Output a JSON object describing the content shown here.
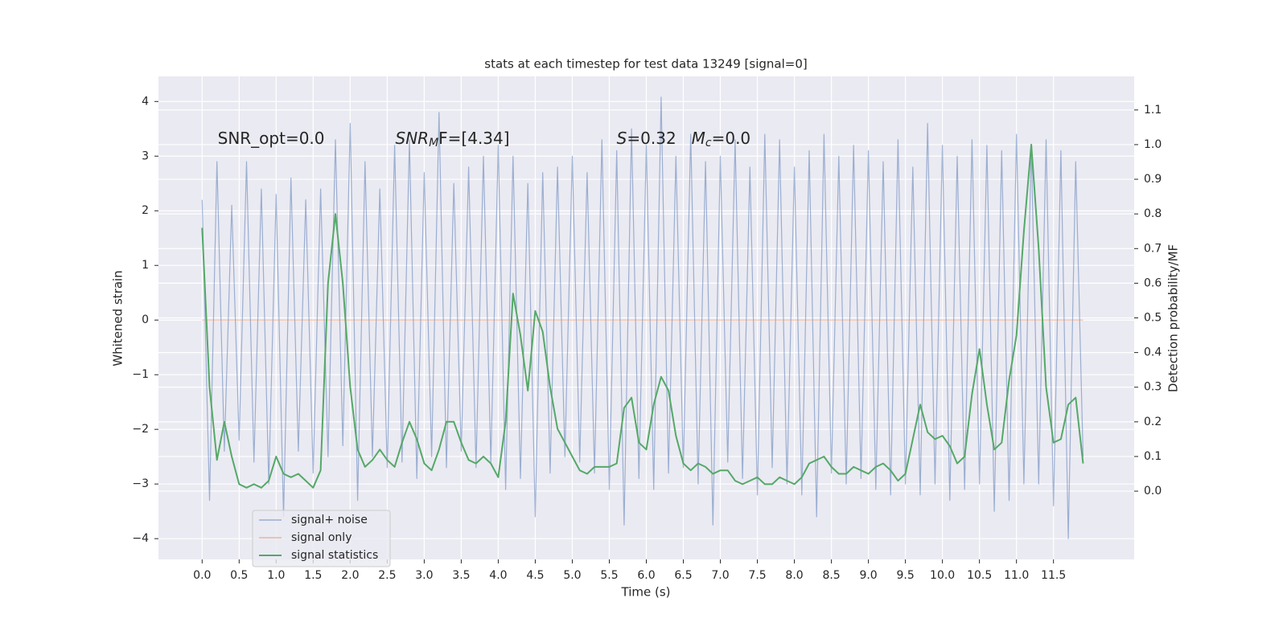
{
  "chart_data": {
    "type": "line",
    "title": "stats at each timestep for test data 13249 [signal=0]",
    "xlabel": "Time (s)",
    "ylabel": "Whitened strain",
    "y2label": "Detection probability/MF",
    "annotations": [
      {
        "x": 0.21,
        "y": 3.31,
        "parts": [
          {
            "text": "SNR_opt=0.0"
          }
        ]
      },
      {
        "x": 2.61,
        "y": 3.31,
        "parts": [
          {
            "text": "SNR",
            "italic": true
          },
          {
            "text": "M",
            "italic": true,
            "sub": true
          },
          {
            "text": "F=[4.34]"
          }
        ]
      },
      {
        "x": 5.6,
        "y": 3.31,
        "parts": [
          {
            "text": "S",
            "italic": true
          },
          {
            "text": "=0.32"
          }
        ]
      },
      {
        "x": 6.61,
        "y": 3.31,
        "parts": [
          {
            "text": "M",
            "italic": true
          },
          {
            "text": "c",
            "italic": true,
            "sub": true
          },
          {
            "text": "=0.0"
          }
        ]
      }
    ],
    "x": [
      0.0,
      0.1,
      0.2,
      0.3,
      0.4,
      0.5,
      0.6,
      0.7,
      0.8,
      0.9,
      1.0,
      1.1,
      1.2,
      1.3,
      1.4,
      1.5,
      1.6,
      1.7,
      1.8,
      1.9,
      2.0,
      2.1,
      2.2,
      2.3,
      2.4,
      2.5,
      2.6,
      2.7,
      2.8,
      2.9,
      3.0,
      3.1,
      3.2,
      3.3,
      3.4,
      3.5,
      3.6,
      3.7,
      3.8,
      3.9,
      4.0,
      4.1,
      4.2,
      4.3,
      4.4,
      4.5,
      4.6,
      4.7,
      4.8,
      4.9,
      5.0,
      5.1,
      5.2,
      5.3,
      5.4,
      5.5,
      5.6,
      5.7,
      5.8,
      5.9,
      6.0,
      6.1,
      6.2,
      6.3,
      6.4,
      6.5,
      6.6,
      6.7,
      6.8,
      6.9,
      7.0,
      7.1,
      7.2,
      7.3,
      7.4,
      7.5,
      7.6,
      7.7,
      7.8,
      7.9,
      8.0,
      8.1,
      8.2,
      8.3,
      8.4,
      8.5,
      8.6,
      8.7,
      8.8,
      8.9,
      9.0,
      9.1,
      9.2,
      9.3,
      9.4,
      9.5,
      9.6,
      9.7,
      9.8,
      9.9,
      10.0,
      10.1,
      10.2,
      10.3,
      10.4,
      10.5,
      10.6,
      10.7,
      10.8,
      10.9,
      11.0,
      11.1,
      11.2,
      11.3,
      11.4,
      11.5,
      11.6,
      11.7,
      11.8,
      11.9
    ],
    "series": [
      {
        "name": "signal+ noise",
        "color": "#4c72b0",
        "opacity": 0.5,
        "values": [
          2.2,
          -3.3,
          2.9,
          -2.4,
          2.1,
          -2.2,
          2.9,
          -2.6,
          2.4,
          -3.0,
          2.3,
          -3.6,
          2.6,
          -2.4,
          2.2,
          -2.8,
          2.4,
          -2.5,
          3.3,
          -2.3,
          3.6,
          -3.3,
          2.9,
          -2.5,
          2.4,
          -2.7,
          3.2,
          -2.6,
          3.3,
          -2.9,
          2.7,
          -2.5,
          3.8,
          -2.7,
          2.5,
          -2.4,
          2.8,
          -2.7,
          3.0,
          -2.6,
          3.2,
          -3.1,
          3.0,
          -2.9,
          2.5,
          -3.6,
          2.7,
          -2.8,
          2.8,
          -2.5,
          3.0,
          -2.6,
          2.7,
          -2.8,
          3.3,
          -3.1,
          3.1,
          -3.75,
          3.5,
          -2.9,
          3.2,
          -3.1,
          4.08,
          -2.8,
          3.0,
          -2.7,
          3.4,
          -3.0,
          2.9,
          -3.75,
          3.0,
          -2.6,
          3.3,
          -2.9,
          2.8,
          -3.2,
          3.4,
          -2.7,
          3.3,
          -3.0,
          2.8,
          -3.2,
          3.1,
          -3.6,
          3.4,
          -2.8,
          3.0,
          -3.0,
          3.2,
          -2.9,
          3.1,
          -3.1,
          2.9,
          -3.2,
          3.3,
          -3.0,
          2.8,
          -3.2,
          3.6,
          -3.0,
          3.2,
          -3.3,
          3.0,
          -3.1,
          3.3,
          -3.0,
          3.2,
          -3.5,
          3.1,
          -3.3,
          3.4,
          -3.0,
          3.2,
          -3.0,
          3.3,
          -3.4,
          3.1,
          -4.0,
          2.9,
          -2.5
        ]
      },
      {
        "name": "signal only",
        "color": "#dd8452",
        "opacity": 0.5,
        "x": [
          0.0,
          11.9
        ],
        "values": [
          0,
          0
        ]
      },
      {
        "name": "signal statistics",
        "color": "#55a868",
        "opacity": 1,
        "axis": "y2",
        "values": [
          0.76,
          0.3,
          0.09,
          0.2,
          0.1,
          0.02,
          0.01,
          0.02,
          0.01,
          0.03,
          0.1,
          0.05,
          0.04,
          0.05,
          0.03,
          0.01,
          0.06,
          0.6,
          0.8,
          0.6,
          0.3,
          0.12,
          0.07,
          0.09,
          0.12,
          0.09,
          0.07,
          0.14,
          0.2,
          0.15,
          0.08,
          0.06,
          0.12,
          0.2,
          0.2,
          0.14,
          0.09,
          0.08,
          0.1,
          0.08,
          0.04,
          0.2,
          0.57,
          0.45,
          0.29,
          0.52,
          0.46,
          0.3,
          0.18,
          0.14,
          0.1,
          0.06,
          0.05,
          0.07,
          0.07,
          0.07,
          0.08,
          0.24,
          0.27,
          0.14,
          0.12,
          0.25,
          0.33,
          0.29,
          0.16,
          0.08,
          0.06,
          0.08,
          0.07,
          0.05,
          0.06,
          0.06,
          0.03,
          0.02,
          0.03,
          0.04,
          0.02,
          0.02,
          0.04,
          0.03,
          0.02,
          0.04,
          0.08,
          0.09,
          0.1,
          0.07,
          0.05,
          0.05,
          0.07,
          0.06,
          0.05,
          0.07,
          0.08,
          0.06,
          0.03,
          0.05,
          0.15,
          0.25,
          0.17,
          0.15,
          0.16,
          0.13,
          0.08,
          0.1,
          0.28,
          0.41,
          0.25,
          0.12,
          0.14,
          0.32,
          0.45,
          0.75,
          1.0,
          0.7,
          0.3,
          0.14,
          0.15,
          0.25,
          0.27,
          0.08
        ]
      }
    ],
    "xlim": [
      -0.59,
      12.59
    ],
    "xticks": [
      {
        "value": 0,
        "label": "0.0"
      },
      0.5,
      {
        "value": 1,
        "label": "1.0"
      },
      1.5,
      {
        "value": 2,
        "label": "2.0"
      },
      2.5,
      {
        "value": 3,
        "label": "3.0"
      },
      3.5,
      {
        "value": 4,
        "label": "4.0"
      },
      4.5,
      {
        "value": 5,
        "label": "5.0"
      },
      5.5,
      {
        "value": 6,
        "label": "6.0"
      },
      6.5,
      {
        "value": 7,
        "label": "7.0"
      },
      7.5,
      {
        "value": 8,
        "label": "8.0"
      },
      8.5,
      {
        "value": 9,
        "label": "9.0"
      },
      9.5,
      {
        "value": 10,
        "label": "10.0"
      },
      10.5,
      {
        "value": 11,
        "label": "11.0"
      },
      11.5
    ],
    "ylim": [
      -4.38,
      4.46
    ],
    "yticks": [
      {
        "value": -4,
        "label": "−4"
      },
      {
        "value": -3,
        "label": "−3"
      },
      {
        "value": -2,
        "label": "−2"
      },
      {
        "value": -1,
        "label": "−1"
      },
      0,
      1,
      2,
      3,
      4
    ],
    "y2lim": [
      -0.197,
      1.197
    ],
    "y2ticks": [
      {
        "value": 0,
        "label": "0.0"
      },
      0.1,
      0.2,
      0.3,
      0.4,
      0.5,
      0.6,
      0.7,
      0.8,
      0.9,
      {
        "value": 1,
        "label": "1.0"
      },
      1.1
    ],
    "grid": true,
    "legend": "lower left"
  }
}
